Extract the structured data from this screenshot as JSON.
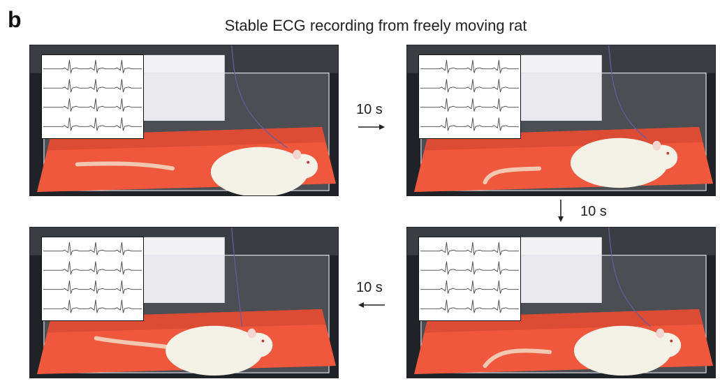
{
  "panel_label": "b",
  "title": "Stable ECG recording from freely moving rat",
  "interval_labels": [
    "10 s",
    "10 s",
    "10 s"
  ],
  "frames": [
    {
      "id": "frame-1",
      "ecg_traces": 4
    },
    {
      "id": "frame-2",
      "ecg_traces": 4
    },
    {
      "id": "frame-3",
      "ecg_traces": 4
    },
    {
      "id": "frame-4",
      "ecg_traces": 4
    }
  ],
  "arrows": [
    {
      "id": "arrow-1-to-2",
      "direction": "right"
    },
    {
      "id": "arrow-2-to-4",
      "direction": "down"
    },
    {
      "id": "arrow-4-to-3",
      "direction": "left"
    }
  ],
  "colors": {
    "floor": "#f0583e",
    "floor_dark": "#c8402c",
    "rat": "#f4f1e6",
    "tail": "#f2c9b0",
    "background": "#1f2226",
    "ecg_trace": "#444444"
  }
}
